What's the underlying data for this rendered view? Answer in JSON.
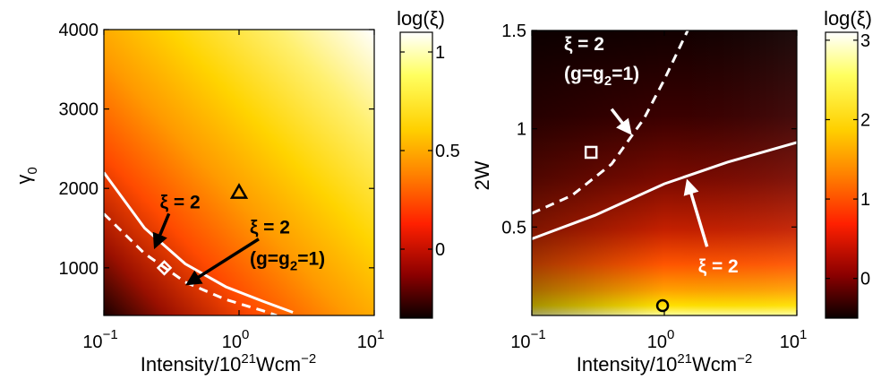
{
  "chart_data": [
    {
      "type": "heatmap",
      "xlabel": "Intensity/10",
      "xlabel_sup": "21",
      "xlabel_rest": "Wcm",
      "xlabel_sup2": "−2",
      "ylabel": "γ",
      "ylabel_sub": "0",
      "xscale": "log",
      "xlim": [
        0.1,
        10
      ],
      "ylim": [
        400,
        4000
      ],
      "x_ticks": [
        {
          "base": "10",
          "exp": "−1",
          "value": 0.1
        },
        {
          "base": "10",
          "exp": "0",
          "value": 1
        },
        {
          "base": "10",
          "exp": "1",
          "value": 10
        }
      ],
      "y_ticks": [
        {
          "label": "1000",
          "value": 1000
        },
        {
          "label": "2000",
          "value": 2000
        },
        {
          "label": "3000",
          "value": 3000
        },
        {
          "label": "4000",
          "value": 4000
        }
      ],
      "colorbar": {
        "label": "log(ξ)",
        "range": [
          -0.35,
          1.1
        ],
        "ticks": [
          {
            "label": "0",
            "value": 0
          },
          {
            "label": "0.5",
            "value": 0.5
          },
          {
            "label": "1",
            "value": 1
          }
        ]
      },
      "curves": [
        {
          "style": "solid",
          "points": [
            [
              0.1,
              2200
            ],
            [
              0.2,
              1500
            ],
            [
              0.4,
              1050
            ],
            [
              0.8,
              760
            ],
            [
              1.5,
              580
            ],
            [
              2.5,
              440
            ]
          ]
        },
        {
          "style": "dashed",
          "points": [
            [
              0.1,
              1680
            ],
            [
              0.2,
              1180
            ],
            [
              0.4,
              820
            ],
            [
              0.8,
              600
            ],
            [
              1.5,
              460
            ],
            [
              1.9,
              400
            ]
          ]
        }
      ],
      "markers": [
        {
          "shape": "triangle",
          "x": 1.0,
          "y": 1950,
          "color": "#000000"
        },
        {
          "shape": "diamond",
          "x": 0.28,
          "y": 1000,
          "color": "#ffffff"
        }
      ],
      "annotations": [
        {
          "text": "ξ = 2",
          "x": 0.26,
          "y": 1750,
          "arrow_to": [
            0.24,
            1270
          ]
        },
        {
          "text": "ξ = 2",
          "x": 1.2,
          "y": 1430,
          "arrow_to": [
            0.42,
            800
          ]
        },
        {
          "text": "(g=g",
          "sub": "2",
          "rest": "=1)",
          "x": 1.2,
          "y": 1040
        }
      ]
    },
    {
      "type": "heatmap",
      "xlabel": "Intensity/10",
      "xlabel_sup": "21",
      "xlabel_rest": "Wcm",
      "xlabel_sup2": "−2",
      "ylabel": "2W",
      "xscale": "log",
      "xlim": [
        0.1,
        10
      ],
      "ylim": [
        0.05,
        1.5
      ],
      "x_ticks": [
        {
          "base": "10",
          "exp": "−1",
          "value": 0.1
        },
        {
          "base": "10",
          "exp": "0",
          "value": 1
        },
        {
          "base": "10",
          "exp": "1",
          "value": 10
        }
      ],
      "y_ticks": [
        {
          "label": "0.5",
          "value": 0.5
        },
        {
          "label": "1",
          "value": 1
        },
        {
          "label": "1.5",
          "value": 1.5
        }
      ],
      "colorbar": {
        "label": "log(ξ)",
        "range": [
          -0.5,
          3.1
        ],
        "ticks": [
          {
            "label": "0",
            "value": 0
          },
          {
            "label": "1",
            "value": 1
          },
          {
            "label": "2",
            "value": 2
          },
          {
            "label": "3",
            "value": 3
          }
        ]
      },
      "curves": [
        {
          "style": "solid",
          "points": [
            [
              0.1,
              0.44
            ],
            [
              0.3,
              0.56
            ],
            [
              1,
              0.72
            ],
            [
              3,
              0.83
            ],
            [
              10,
              0.93
            ]
          ]
        },
        {
          "style": "dashed",
          "points": [
            [
              0.1,
              0.57
            ],
            [
              0.2,
              0.66
            ],
            [
              0.4,
              0.82
            ],
            [
              0.7,
              1.05
            ],
            [
              1.0,
              1.25
            ],
            [
              1.5,
              1.5
            ]
          ]
        }
      ],
      "markers": [
        {
          "shape": "square",
          "x": 0.28,
          "y": 0.88,
          "color": "#ffffff"
        },
        {
          "shape": "circle",
          "x": 0.97,
          "y": 0.1,
          "color": "#000000"
        }
      ],
      "annotations": [
        {
          "text": "ξ = 2",
          "x": 0.175,
          "y": 1.4
        },
        {
          "text": "(g=g",
          "sub": "2",
          "rest": "=1)",
          "x": 0.175,
          "y": 1.25,
          "arrow_to": [
            0.55,
            0.98
          ],
          "arrow_from": [
            0.4,
            1.1
          ]
        },
        {
          "text": "ξ = 2",
          "x": 1.8,
          "y": 0.27,
          "arrow_to": [
            1.5,
            0.73
          ],
          "arrow_from": [
            2.1,
            0.4
          ]
        }
      ]
    }
  ]
}
